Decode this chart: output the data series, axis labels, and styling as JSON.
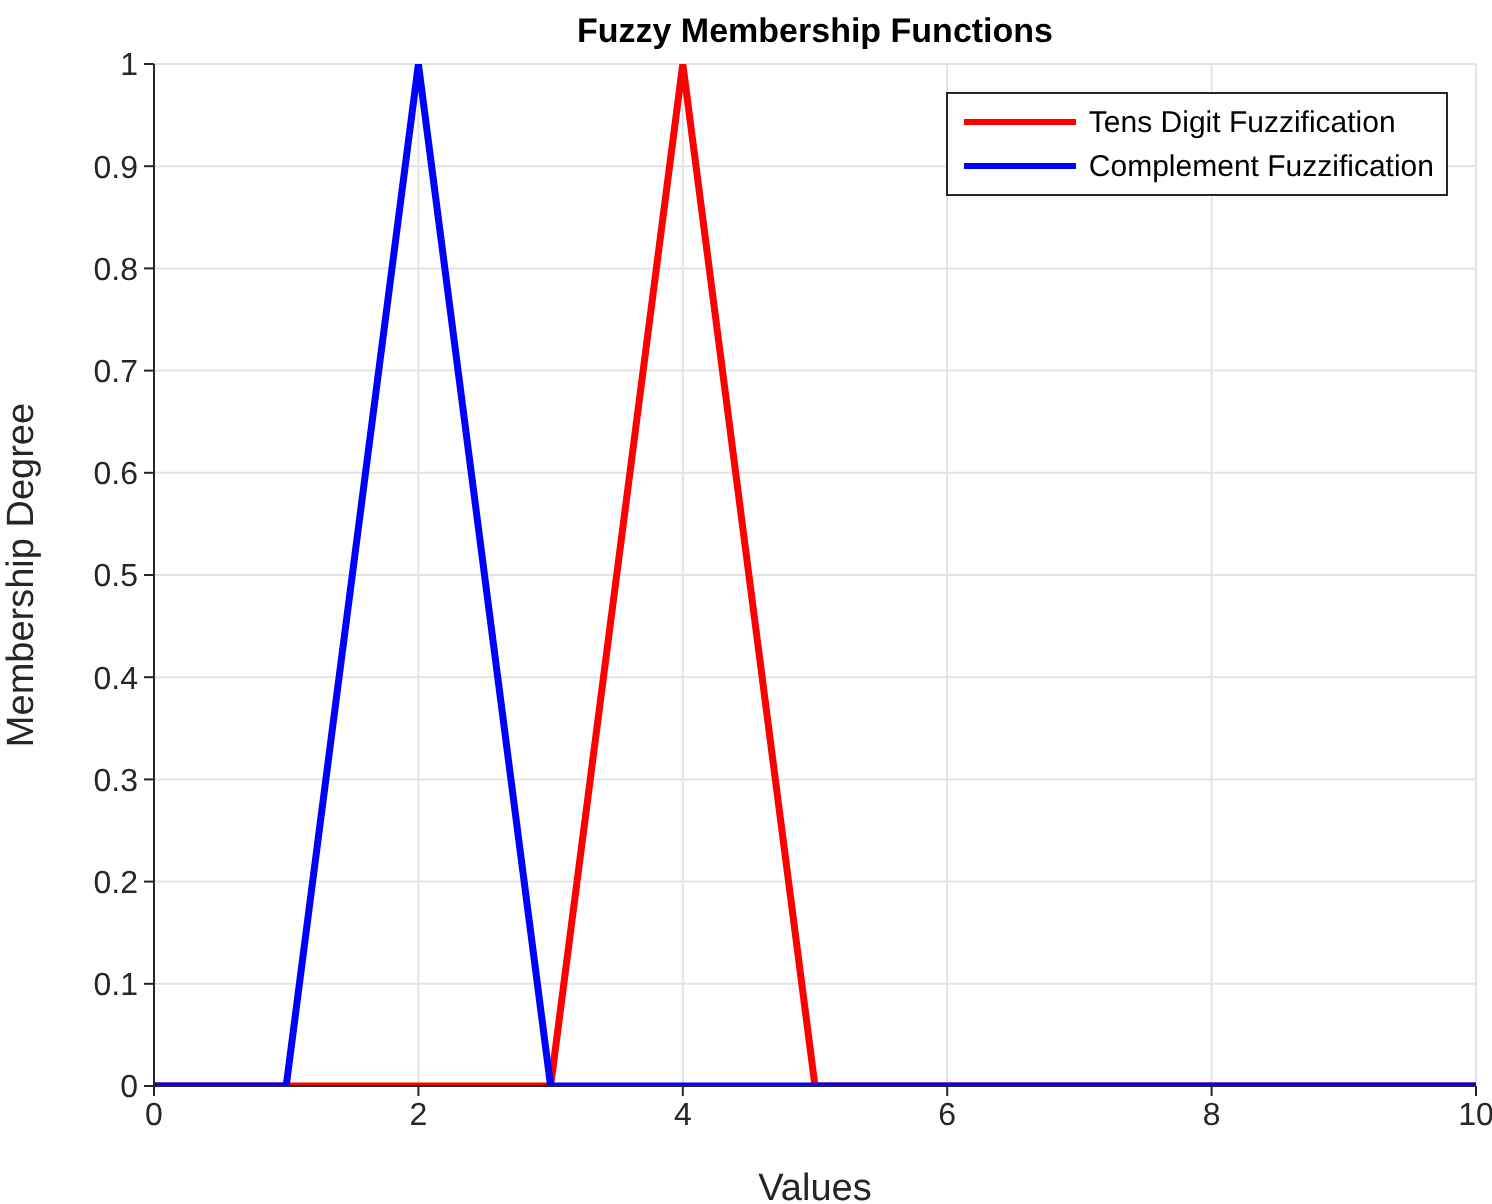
{
  "chart_data": {
    "type": "line",
    "title": "Fuzzy Membership Functions",
    "xlabel": "Values",
    "ylabel": "Membership Degree",
    "series": [
      {
        "name": "Tens Digit Fuzzification",
        "color": "#ff0000",
        "x": [
          0,
          3,
          4,
          5,
          10
        ],
        "values": [
          0,
          0,
          1,
          0,
          0
        ]
      },
      {
        "name": "Complement Fuzzification",
        "color": "#0000ff",
        "x": [
          0,
          1,
          2,
          3,
          10
        ],
        "values": [
          0,
          0,
          1,
          0,
          0
        ]
      }
    ],
    "xlim": [
      0,
      10
    ],
    "xticks": [
      0,
      2,
      4,
      6,
      8,
      10
    ],
    "ylim": [
      0,
      1
    ],
    "yticks": [
      0,
      0.1,
      0.2,
      0.3,
      0.4,
      0.5,
      0.6,
      0.7,
      0.8,
      0.9,
      1
    ],
    "grid": true,
    "legend": "top right",
    "marker": "none",
    "line_style": "solid"
  }
}
